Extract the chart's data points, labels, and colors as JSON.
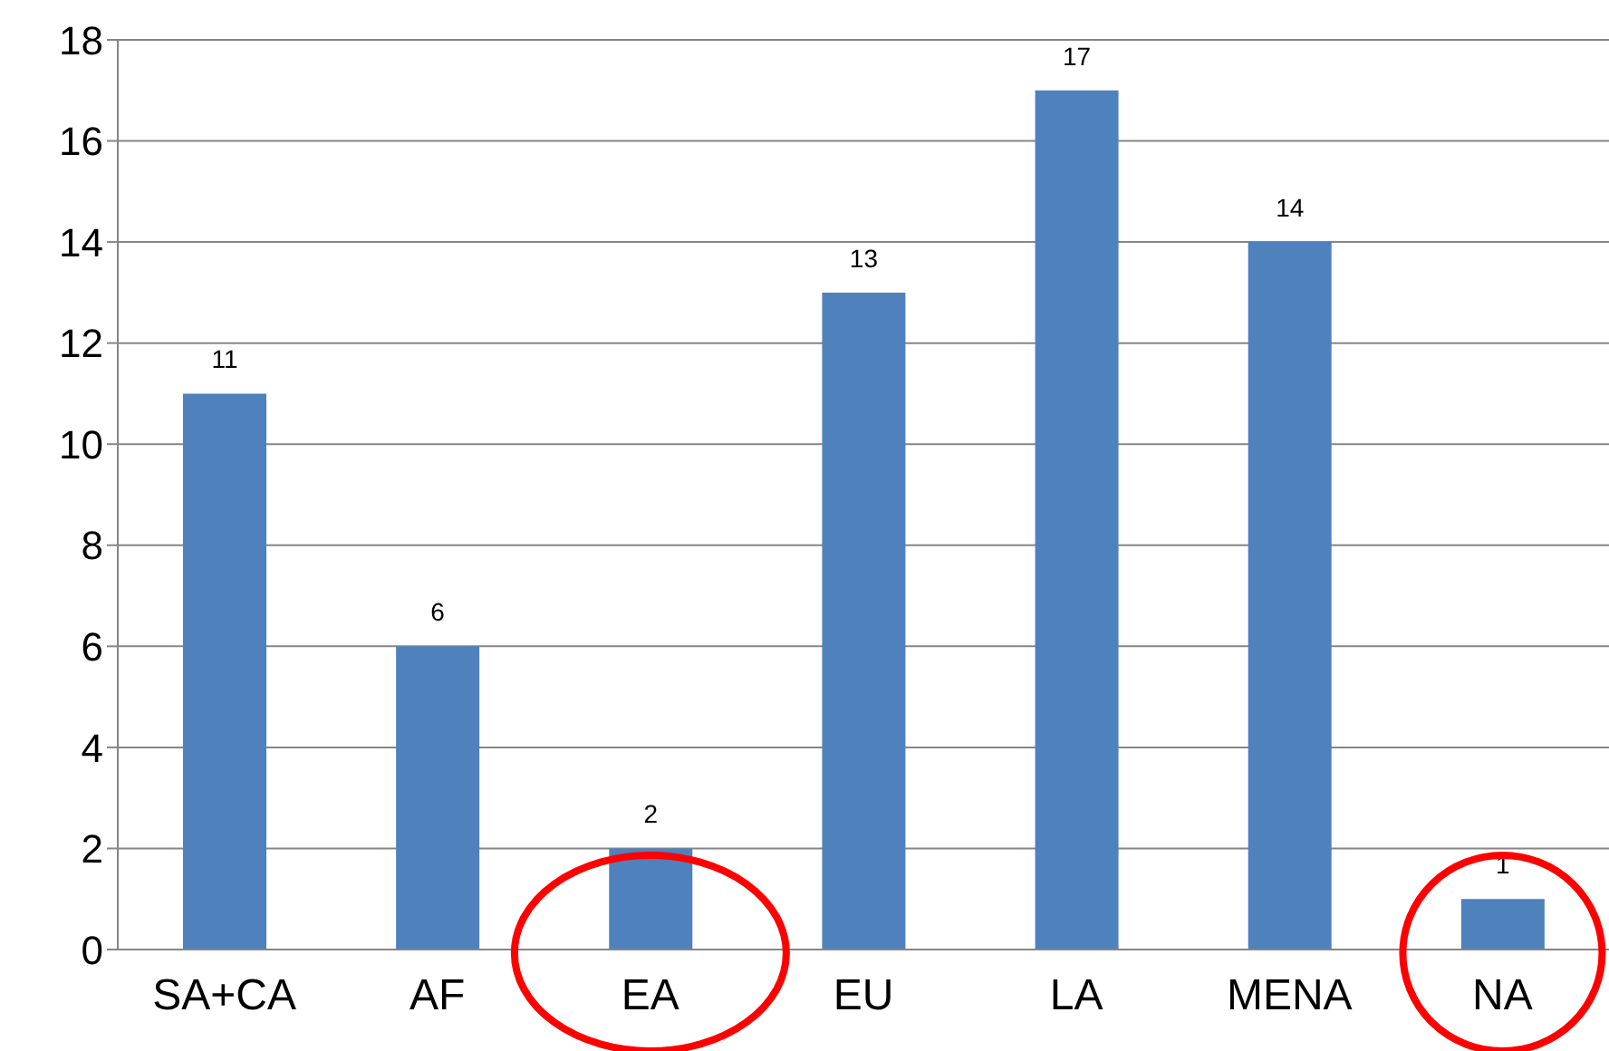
{
  "chart_data": {
    "type": "bar",
    "categories": [
      "SA+CA",
      "AF",
      "EA",
      "EU",
      "LA",
      "MENA",
      "NA"
    ],
    "values": [
      11,
      6,
      2,
      13,
      17,
      14,
      1
    ],
    "color": "#4f81bd",
    "ylim": [
      0,
      18
    ],
    "yticks": [
      0,
      2,
      4,
      6,
      8,
      10,
      12,
      14,
      16,
      18
    ],
    "grid": "y",
    "data_labels": true
  }
}
